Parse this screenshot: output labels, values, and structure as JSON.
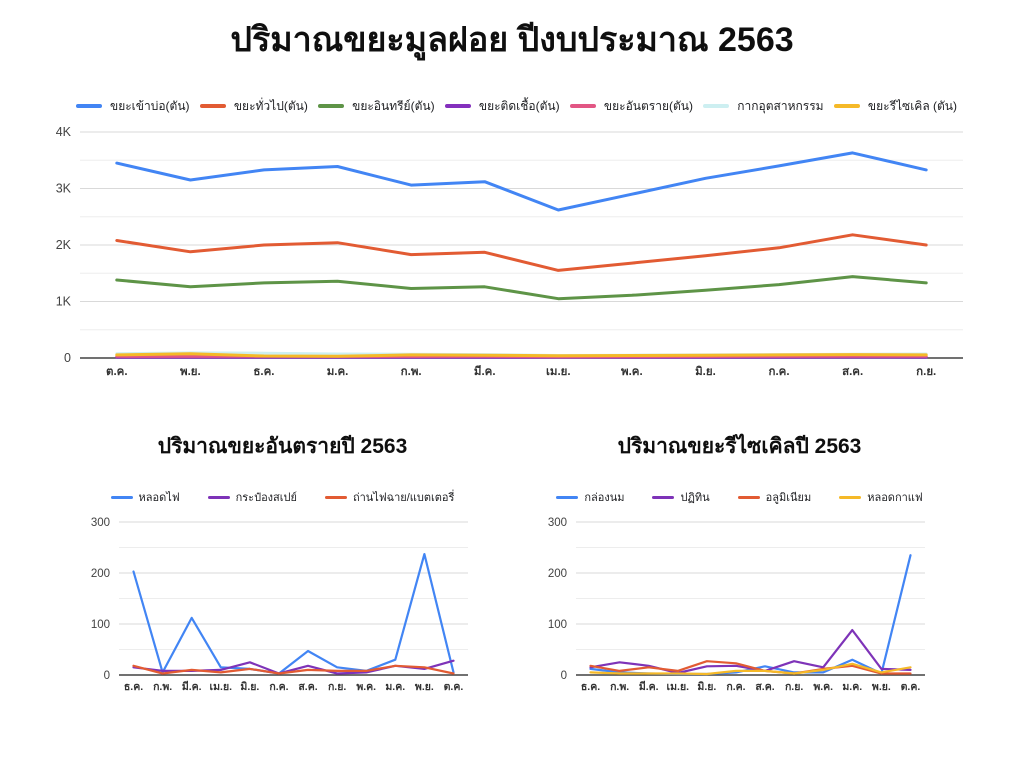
{
  "page": {
    "title": "ปริมาณขยะมูลฝอย ปีงบประมาณ 2563"
  },
  "chart_data": [
    {
      "type": "line",
      "title": "",
      "legend_position": "top",
      "grid": true,
      "categories": [
        "ต.ค.",
        "พ.ย.",
        "ธ.ค.",
        "ม.ค.",
        "ก.พ.",
        "มี.ค.",
        "เม.ย.",
        "พ.ค.",
        "มิ.ย.",
        "ก.ค.",
        "ส.ค.",
        "ก.ย."
      ],
      "ylim": [
        0,
        4000
      ],
      "yminor": 500,
      "yticks": [
        {
          "v": 0,
          "label": "0"
        },
        {
          "v": 1000,
          "label": "1K"
        },
        {
          "v": 2000,
          "label": "2K"
        },
        {
          "v": 3000,
          "label": "3K"
        },
        {
          "v": 4000,
          "label": "4K"
        }
      ],
      "series": [
        {
          "name": "ขยะเข้าบ่อ(ตัน)",
          "color": "#4285F4",
          "values": [
            3450,
            3150,
            3330,
            3390,
            3060,
            3120,
            2620,
            2900,
            3180,
            3400,
            3630,
            3330
          ]
        },
        {
          "name": "ขยะทั่วไป(ตัน)",
          "color": "#E25B33",
          "values": [
            2080,
            1880,
            2000,
            2040,
            1830,
            1870,
            1550,
            1680,
            1810,
            1950,
            2180,
            2000
          ]
        },
        {
          "name": "ขยะอินทรีย์(ตัน)",
          "color": "#5E9447",
          "values": [
            1380,
            1260,
            1330,
            1360,
            1230,
            1260,
            1050,
            1110,
            1200,
            1300,
            1440,
            1330
          ]
        },
        {
          "name": "ขยะติดเชื้อ(ตัน)",
          "color": "#8430BD",
          "values": [
            15,
            14,
            15,
            15,
            14,
            15,
            12,
            13,
            14,
            15,
            16,
            15
          ]
        },
        {
          "name": "ขยะอันตราย(ตัน)",
          "color": "#E25684",
          "values": [
            30,
            28,
            30,
            28,
            27,
            28,
            22,
            25,
            26,
            28,
            30,
            32
          ]
        },
        {
          "name": "กากอุตสาหกรรม",
          "color": "#CDEFF1",
          "values": [
            75,
            90,
            85,
            70,
            65,
            60,
            45,
            50,
            55,
            60,
            65,
            70
          ]
        },
        {
          "name": "ขยะรีไซเคิล (ตัน)",
          "color": "#F5B928",
          "values": [
            55,
            75,
            35,
            30,
            55,
            50,
            40,
            45,
            50,
            55,
            60,
            55
          ]
        }
      ]
    },
    {
      "type": "line",
      "title": "ปริมาณขยะอันตรายปี 2563",
      "legend_position": "top",
      "grid": true,
      "categories": [
        "ธ.ค.",
        "ก.พ.",
        "มี.ค.",
        "เม.ย.",
        "มิ.ย.",
        "ก.ค.",
        "ส.ค.",
        "ก.ย.",
        "พ.ค.",
        "ม.ค.",
        "พ.ย.",
        "ต.ค."
      ],
      "ylim": [
        0,
        300
      ],
      "yminor": 50,
      "yticks": [
        {
          "v": 0,
          "label": "0"
        },
        {
          "v": 100,
          "label": "100"
        },
        {
          "v": 200,
          "label": "200"
        },
        {
          "v": 300,
          "label": "300"
        }
      ],
      "series": [
        {
          "name": "หลอดไฟ",
          "color": "#4285F4",
          "values": [
            203,
            5,
            112,
            15,
            12,
            3,
            47,
            15,
            8,
            30,
            237,
            5
          ]
        },
        {
          "name": "กระป๋องสเปย์",
          "color": "#7E33B8",
          "values": [
            15,
            8,
            8,
            10,
            25,
            3,
            18,
            3,
            5,
            18,
            12,
            28
          ]
        },
        {
          "name": "ถ่านไฟฉาย/แบตเตอรี่",
          "color": "#E25B33",
          "values": [
            18,
            3,
            10,
            5,
            12,
            3,
            10,
            8,
            8,
            18,
            15,
            3
          ]
        }
      ]
    },
    {
      "type": "line",
      "title": "ปริมาณขยะรีไซเคิลปี 2563",
      "legend_position": "top",
      "grid": true,
      "categories": [
        "ธ.ค.",
        "ก.พ.",
        "มี.ค.",
        "เม.ย.",
        "มิ.ย.",
        "ก.ค.",
        "ส.ค.",
        "ก.ย.",
        "พ.ค.",
        "ม.ค.",
        "พ.ย.",
        "ต.ค."
      ],
      "ylim": [
        0,
        300
      ],
      "yminor": 50,
      "yticks": [
        {
          "v": 0,
          "label": "0"
        },
        {
          "v": 100,
          "label": "100"
        },
        {
          "v": 200,
          "label": "200"
        },
        {
          "v": 300,
          "label": "300"
        }
      ],
      "series": [
        {
          "name": "กล่องนม",
          "color": "#4285F4",
          "values": [
            12,
            5,
            3,
            2,
            2,
            5,
            17,
            5,
            5,
            30,
            3,
            235
          ]
        },
        {
          "name": "ปฏิทิน",
          "color": "#7E33B8",
          "values": [
            15,
            25,
            18,
            4,
            17,
            18,
            8,
            27,
            15,
            88,
            12,
            10
          ]
        },
        {
          "name": "อลูมิเนียม",
          "color": "#E25B33",
          "values": [
            18,
            8,
            15,
            8,
            27,
            23,
            8,
            3,
            12,
            18,
            3,
            3
          ]
        },
        {
          "name": "หลอดกาแฟ",
          "color": "#F5B928",
          "values": [
            5,
            3,
            3,
            3,
            2,
            8,
            8,
            3,
            10,
            22,
            5,
            15
          ]
        }
      ]
    }
  ]
}
